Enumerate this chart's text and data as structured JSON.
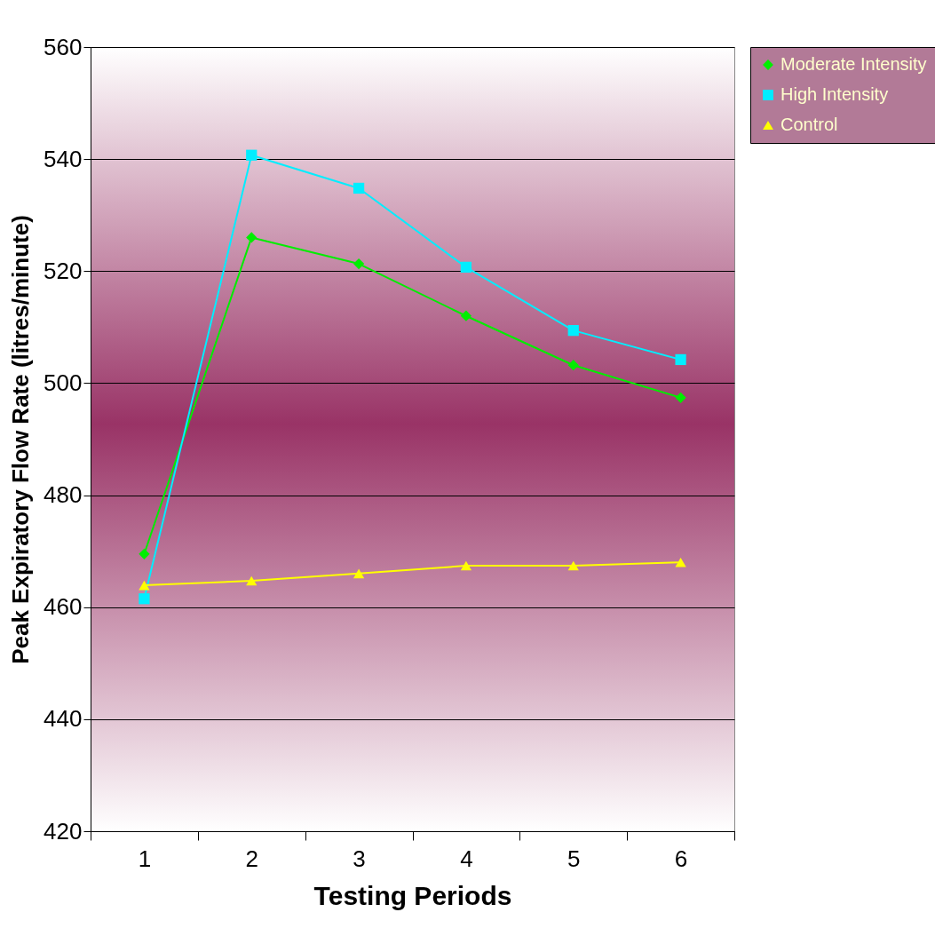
{
  "chart_data": {
    "type": "line",
    "xlabel": "Testing Periods",
    "ylabel": "Peak Expiratory Flow Rate (litres/minute)",
    "categories": [
      "1",
      "2",
      "3",
      "4",
      "5",
      "6"
    ],
    "series": [
      {
        "name": "Moderate Intensity",
        "color": "#00ee00",
        "marker": "diamond",
        "values": [
          469.5,
          526,
          521.3,
          512,
          503.2,
          497.4
        ]
      },
      {
        "name": "High Intensity",
        "color": "#00eeff",
        "marker": "square",
        "values": [
          461.5,
          540.7,
          534.8,
          520.7,
          509.4,
          504.2
        ]
      },
      {
        "name": "Control",
        "color": "#ffff00",
        "marker": "triangle",
        "values": [
          463.9,
          464.7,
          466,
          467.4,
          467.4,
          468
        ]
      }
    ],
    "ylim": [
      420,
      560
    ],
    "yticks": [
      420,
      440,
      460,
      480,
      500,
      520,
      540,
      560
    ],
    "grid": "y",
    "legend": "right",
    "line_style": "solid"
  }
}
